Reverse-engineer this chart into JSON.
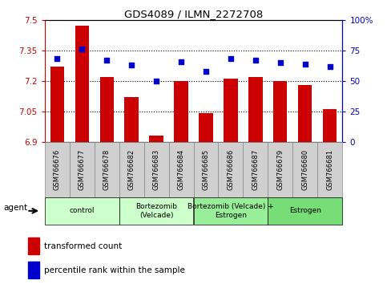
{
  "title": "GDS4089 / ILMN_2272708",
  "samples": [
    "GSM766676",
    "GSM766677",
    "GSM766678",
    "GSM766682",
    "GSM766683",
    "GSM766684",
    "GSM766685",
    "GSM766686",
    "GSM766687",
    "GSM766679",
    "GSM766680",
    "GSM766681"
  ],
  "bar_values": [
    7.27,
    7.47,
    7.22,
    7.12,
    6.93,
    7.2,
    7.04,
    7.21,
    7.22,
    7.2,
    7.18,
    7.06
  ],
  "dot_values": [
    68,
    76,
    67,
    63,
    50,
    66,
    58,
    68,
    67,
    65,
    64,
    62
  ],
  "bar_color": "#cc0000",
  "dot_color": "#0000cc",
  "bar_baseline": 6.9,
  "ylim_left": [
    6.9,
    7.5
  ],
  "ylim_right": [
    0,
    100
  ],
  "yticks_left": [
    6.9,
    7.05,
    7.2,
    7.35,
    7.5
  ],
  "yticks_right": [
    0,
    25,
    50,
    75,
    100
  ],
  "ytick_labels_left": [
    "6.9",
    "7.05",
    "7.2",
    "7.35",
    "7.5"
  ],
  "ytick_labels_right": [
    "0",
    "25",
    "50",
    "75",
    "100%"
  ],
  "hlines": [
    7.05,
    7.2,
    7.35
  ],
  "agent_groups": [
    {
      "label": "control",
      "start": 0,
      "end": 3
    },
    {
      "label": "Bortezomib\n(Velcade)",
      "start": 3,
      "end": 6
    },
    {
      "label": "Bortezomib (Velcade) +\nEstrogen",
      "start": 6,
      "end": 9
    },
    {
      "label": "Estrogen",
      "start": 9,
      "end": 12
    }
  ],
  "group_colors": [
    "#ccffcc",
    "#ccffcc",
    "#99ee99",
    "#77dd77"
  ],
  "agent_label": "agent",
  "legend_bar_label": "transformed count",
  "legend_dot_label": "percentile rank within the sample",
  "bar_width": 0.55,
  "sample_box_color": "#d0d0d0",
  "sample_box_edgecolor": "#888888"
}
